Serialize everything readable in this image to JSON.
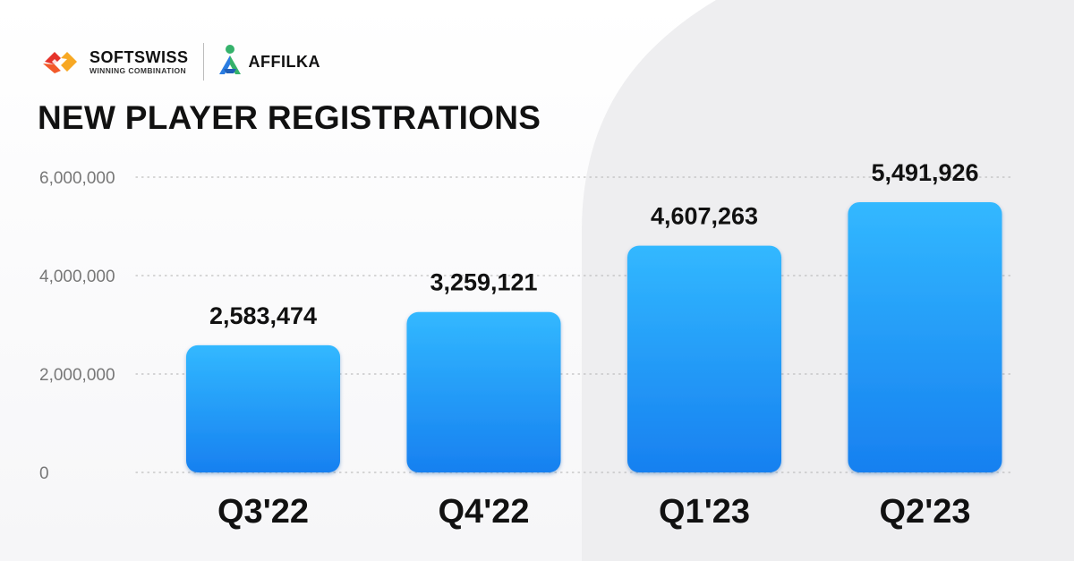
{
  "brand": {
    "softswiss_name": "SOFTSWISS",
    "softswiss_tagline": "WINNING COMBINATION",
    "affilka_name": "AFFILKA"
  },
  "colors": {
    "bar_top": "#32b8ff",
    "bar_bottom": "#1780f0",
    "text_dark": "#111111",
    "axis_text": "#777777",
    "grid": "#bfbfbf",
    "softswiss_red": "#e5332a",
    "softswiss_yellow": "#f7a823",
    "affilka_blue": "#2a7de1",
    "affilka_green": "#35b26b"
  },
  "chart_data": {
    "type": "bar",
    "title": "NEW PLAYER REGISTRATIONS",
    "categories": [
      "Q3'22",
      "Q4'22",
      "Q1'23",
      "Q2'23"
    ],
    "values": [
      2583474,
      3259121,
      4607263,
      5491926
    ],
    "value_labels": [
      "2,583,474",
      "3,259,121",
      "4,607,263",
      "5,491,926"
    ],
    "ylim": [
      0,
      6000000
    ],
    "yticks": [
      0,
      2000000,
      4000000,
      6000000
    ],
    "ytick_labels": [
      "0",
      "2,000,000",
      "4,000,000",
      "6,000,000"
    ],
    "xlabel": "",
    "ylabel": "",
    "grid": true,
    "legend": false
  }
}
